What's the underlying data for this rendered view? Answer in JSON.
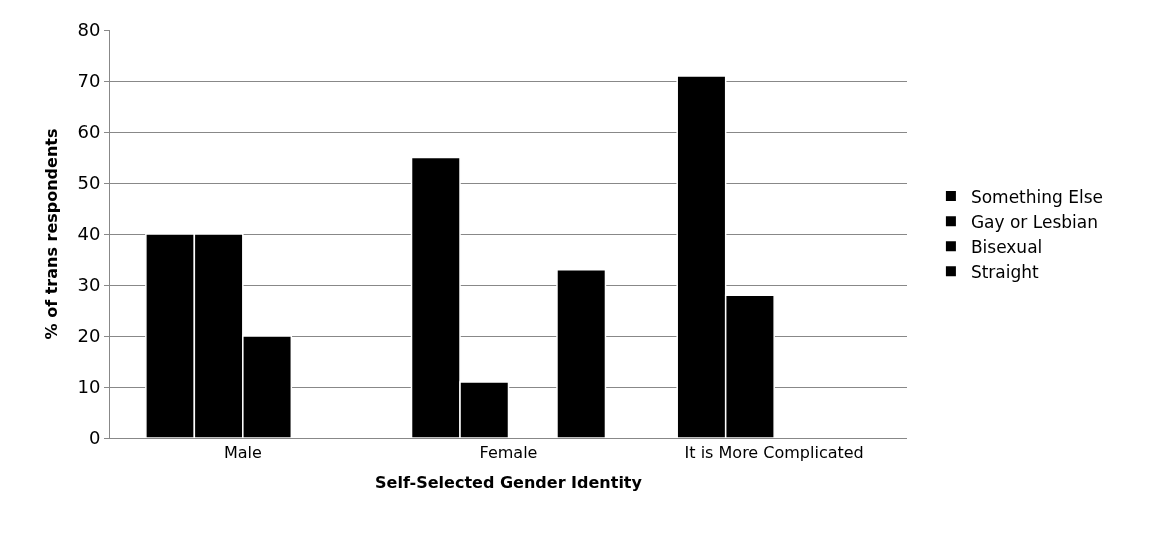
{
  "chart_data": {
    "type": "bar",
    "xlabel": "Self-Selected Gender Identity",
    "ylabel": "% of trans respondents",
    "categories": [
      "Male",
      "Female",
      "It is More Complicated"
    ],
    "series": [
      {
        "name": "Something Else",
        "color": "#000000",
        "values": [
          40,
          55,
          71
        ]
      },
      {
        "name": "Gay or Lesbian",
        "color": "#000000",
        "values": [
          40,
          11,
          28
        ]
      },
      {
        "name": "Bisexual",
        "color": "#000000",
        "values": [
          20,
          null,
          null
        ]
      },
      {
        "name": "Straight",
        "color": "#000000",
        "values": [
          null,
          33,
          null
        ]
      }
    ],
    "ylim": [
      0,
      80
    ],
    "yticks": [
      0,
      10,
      20,
      30,
      40,
      50,
      60,
      70,
      80
    ],
    "grid": "y",
    "legend": "right"
  }
}
